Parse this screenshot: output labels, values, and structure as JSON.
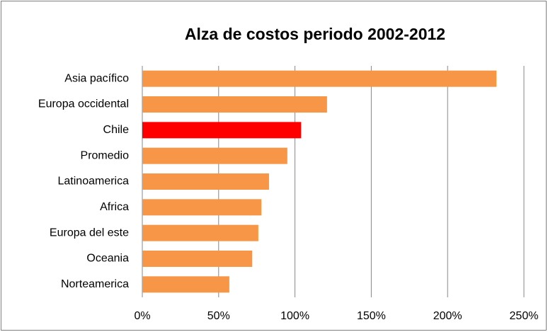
{
  "chart_data": {
    "type": "barh",
    "title": "Alza de costos periodo 2002-2012",
    "categories": [
      "Asia pacífico",
      "Europa occidental",
      "Chile",
      "Promedio",
      "Latinoamerica",
      "Africa",
      "Europa del este",
      "Oceania",
      "Norteamerica"
    ],
    "values": [
      232,
      121,
      104,
      95,
      83,
      78,
      76,
      72,
      57
    ],
    "colors": [
      "#f79646",
      "#f79646",
      "#ff0000",
      "#f79646",
      "#f79646",
      "#f79646",
      "#f79646",
      "#f79646",
      "#f79646"
    ],
    "xlim": [
      0,
      250
    ],
    "xticks": [
      {
        "value": 0,
        "label": "0%"
      },
      {
        "value": 50,
        "label": "50%"
      },
      {
        "value": 100,
        "label": "100%"
      },
      {
        "value": 150,
        "label": "150%"
      },
      {
        "value": 200,
        "label": "200%"
      },
      {
        "value": 250,
        "label": "250%"
      }
    ],
    "grid": true
  }
}
